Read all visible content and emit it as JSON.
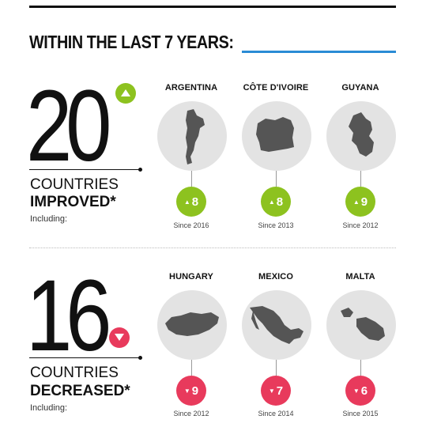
{
  "heading": "WITHIN THE LAST 7 YEARS:",
  "colors": {
    "improved": "#8dc21f",
    "decreased": "#e83a5c",
    "accent_rule": "#2a8bd5",
    "map_bg": "#e3e3e3",
    "country_fill": "#555555"
  },
  "improved": {
    "number": "20",
    "label_line1": "COUNTRIES",
    "label_line2": "IMPROVED*",
    "including": "Including:",
    "countries": [
      {
        "name": "ARGENTINA",
        "change": "8",
        "since": "Since 2016",
        "icon": "argentina-map-icon"
      },
      {
        "name": "CÔTE D'IVOIRE",
        "change": "8",
        "since": "Since 2013",
        "icon": "cote-divoire-map-icon"
      },
      {
        "name": "GUYANA",
        "change": "9",
        "since": "Since 2012",
        "icon": "guyana-map-icon"
      }
    ]
  },
  "decreased": {
    "number": "16",
    "label_line1": "COUNTRIES",
    "label_line2": "DECREASED*",
    "including": "Including:",
    "countries": [
      {
        "name": "HUNGARY",
        "change": "9",
        "since": "Since 2012",
        "icon": "hungary-map-icon"
      },
      {
        "name": "MEXICO",
        "change": "7",
        "since": "Since 2014",
        "icon": "mexico-map-icon"
      },
      {
        "name": "MALTA",
        "change": "6",
        "since": "Since 2015",
        "icon": "malta-map-icon"
      }
    ]
  }
}
